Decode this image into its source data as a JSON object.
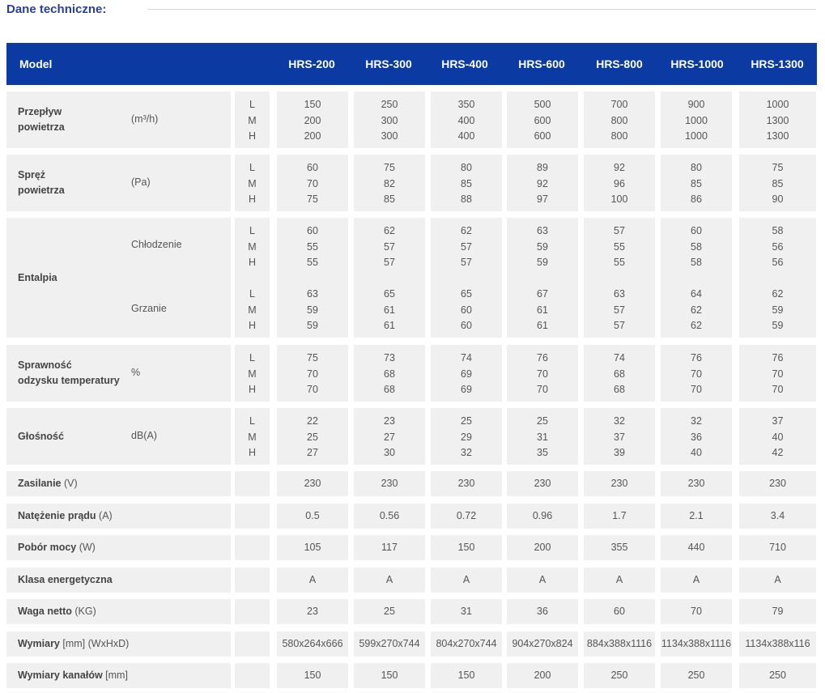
{
  "heading": "Dane techniczne:",
  "header": {
    "model_label": "Model",
    "models": [
      "HRS-200",
      "HRS-300",
      "HRS-400",
      "HRS-600",
      "HRS-800",
      "HRS-1000",
      "HRS-1300"
    ]
  },
  "level_labels": [
    "L",
    "M",
    "H"
  ],
  "multi_rows": [
    {
      "label_lines": [
        "Przepływ",
        "powietrza"
      ],
      "unit": "(m³/h)",
      "values": [
        [
          "150",
          "200",
          "200"
        ],
        [
          "250",
          "300",
          "300"
        ],
        [
          "350",
          "400",
          "400"
        ],
        [
          "500",
          "600",
          "600"
        ],
        [
          "700",
          "800",
          "800"
        ],
        [
          "900",
          "1000",
          "1000"
        ],
        [
          "1000",
          "1300",
          "1300"
        ]
      ]
    },
    {
      "label_lines": [
        "Spręż",
        "powietrza"
      ],
      "unit": "(Pa)",
      "values": [
        [
          "60",
          "70",
          "75"
        ],
        [
          "75",
          "82",
          "85"
        ],
        [
          "80",
          "85",
          "88"
        ],
        [
          "89",
          "92",
          "97"
        ],
        [
          "92",
          "96",
          "100"
        ],
        [
          "80",
          "85",
          "86"
        ],
        [
          "75",
          "85",
          "90"
        ]
      ]
    },
    {
      "label_lines": [
        "Sprawność",
        "odzysku temperatury"
      ],
      "unit": "%",
      "values": [
        [
          "75",
          "70",
          "70"
        ],
        [
          "73",
          "68",
          "68"
        ],
        [
          "74",
          "69",
          "69"
        ],
        [
          "76",
          "70",
          "70"
        ],
        [
          "74",
          "68",
          "68"
        ],
        [
          "76",
          "70",
          "70"
        ],
        [
          "76",
          "70",
          "70"
        ]
      ]
    },
    {
      "label_lines": [
        "Głośność"
      ],
      "unit": "dB(A)",
      "values": [
        [
          "22",
          "25",
          "27"
        ],
        [
          "23",
          "27",
          "30"
        ],
        [
          "25",
          "29",
          "32"
        ],
        [
          "25",
          "31",
          "35"
        ],
        [
          "32",
          "37",
          "39"
        ],
        [
          "32",
          "36",
          "40"
        ],
        [
          "37",
          "40",
          "42"
        ]
      ]
    }
  ],
  "enthalpy": {
    "label": "Entalpia",
    "cooling_label": "Chłodzenie",
    "heating_label": "Grzanie",
    "cooling": [
      [
        "60",
        "55",
        "55"
      ],
      [
        "62",
        "57",
        "57"
      ],
      [
        "62",
        "57",
        "57"
      ],
      [
        "63",
        "59",
        "59"
      ],
      [
        "57",
        "55",
        "55"
      ],
      [
        "60",
        "58",
        "58"
      ],
      [
        "58",
        "56",
        "56"
      ]
    ],
    "heating": [
      [
        "63",
        "59",
        "59"
      ],
      [
        "65",
        "61",
        "61"
      ],
      [
        "65",
        "60",
        "60"
      ],
      [
        "67",
        "61",
        "61"
      ],
      [
        "63",
        "57",
        "57"
      ],
      [
        "64",
        "62",
        "62"
      ],
      [
        "62",
        "59",
        "59"
      ]
    ]
  },
  "single_rows": [
    {
      "label": "Zasilanie",
      "unit": " (V)",
      "values": [
        "230",
        "230",
        "230",
        "230",
        "230",
        "230",
        "230"
      ]
    },
    {
      "label": "Natężenie prądu",
      "unit": " (A)",
      "values": [
        "0.5",
        "0.56",
        "0.72",
        "0.96",
        "1.7",
        "2.1",
        "3.4"
      ]
    },
    {
      "label": "Pobór mocy",
      "unit": " (W)",
      "values": [
        "105",
        "117",
        "150",
        "200",
        "355",
        "440",
        "710"
      ]
    },
    {
      "label": "Klasa energetyczna",
      "unit": "",
      "values": [
        "A",
        "A",
        "A",
        "A",
        "A",
        "A",
        "A"
      ]
    },
    {
      "label": "Waga netto",
      "unit": " (KG)",
      "values": [
        "23",
        "25",
        "31",
        "36",
        "60",
        "70",
        "79"
      ]
    },
    {
      "label": "Wymiary",
      "unit": " [mm] (WxHxD)",
      "values": [
        "580x264x666",
        "599x270x744",
        "804x270x744",
        "904x270x824",
        "884x388x1116",
        "1134x388x1116",
        "1134x388x116"
      ]
    },
    {
      "label": "Wymiary kanałów",
      "unit": " [mm]",
      "values": [
        "150",
        "150",
        "150",
        "200",
        "250",
        "250",
        "250"
      ]
    }
  ]
}
